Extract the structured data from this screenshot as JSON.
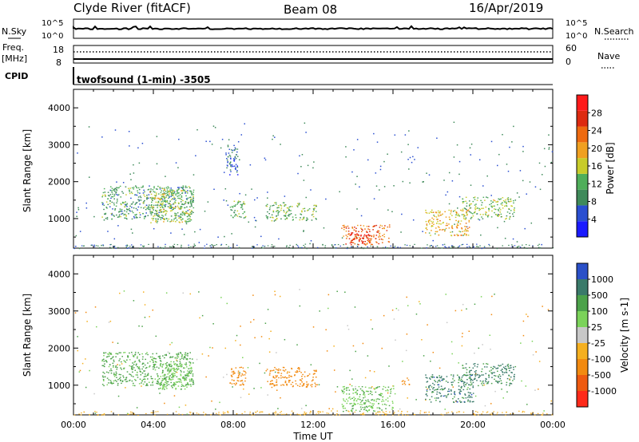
{
  "header": {
    "station": "Clyde River (fitACF)",
    "beam": "Beam 08",
    "date": "16/Apr/2019"
  },
  "top_panels": {
    "nsky_label": "N.Sky",
    "nsearch_label": "N.Search",
    "nsky_ticks": [
      "10^5",
      "10^0"
    ],
    "nsearch_ticks": [
      "10^5",
      "10^0"
    ],
    "freq_label": "Freq.",
    "freq_unit": "[MHz]",
    "freq_ticks": [
      "18",
      "8"
    ],
    "nave_label": "Nave",
    "nave_ticks": [
      "60",
      "0"
    ],
    "cpid_label": "CPID",
    "cpid_text": "twofsound (1-min) -3505"
  },
  "colors": {
    "power_scale": [
      "#1a1aff",
      "#2a4fd1",
      "#3f8a5a",
      "#4fae5a",
      "#c8cc2a",
      "#f0a020",
      "#ee6a10",
      "#dd2a10",
      "#ff1a1a"
    ],
    "velocity_scale": [
      "#ff2a1a",
      "#ee5a10",
      "#f28a10",
      "#f5b020",
      "#c8c8c8",
      "#7bd35a",
      "#4ca24a",
      "#3a7a6a",
      "#2a50c8"
    ]
  },
  "chart_data": [
    {
      "type": "heatmap",
      "title": "",
      "quantity": "Power",
      "colorbar_label": "Power [dB]",
      "colorbar_ticks": [
        "28",
        "24",
        "20",
        "16",
        "12",
        "8",
        "4"
      ],
      "clim": [
        0,
        30
      ],
      "xlabel": "",
      "ylabel": "Slant Range [km]",
      "xlim": [
        "00:00",
        "24:00"
      ],
      "ylim": [
        200,
        4500
      ],
      "y_ticks": [
        1000,
        2000,
        3000,
        4000
      ],
      "x_tick_labels": [
        "00:00",
        "04:00",
        "08:00",
        "12:00",
        "16:00",
        "20:00",
        "00:00"
      ],
      "x_ticks_hours": [
        0,
        4,
        8,
        12,
        16,
        20,
        24
      ],
      "regions": [
        {
          "t": [
            1.4,
            6.0
          ],
          "r": [
            1000,
            1900
          ],
          "v": 10
        },
        {
          "t": [
            3.8,
            5.9
          ],
          "r": [
            900,
            1800
          ],
          "v": 14
        },
        {
          "t": [
            7.8,
            8.6
          ],
          "r": [
            1000,
            1500
          ],
          "v": 11
        },
        {
          "t": [
            9.6,
            12.2
          ],
          "r": [
            950,
            1450
          ],
          "v": 12
        },
        {
          "t": [
            13.4,
            15.8
          ],
          "r": [
            300,
            850
          ],
          "v": 22
        },
        {
          "t": [
            13.8,
            14.8
          ],
          "r": [
            350,
            650
          ],
          "v": 27
        },
        {
          "t": [
            17.6,
            19.8
          ],
          "r": [
            550,
            1250
          ],
          "v": 17
        },
        {
          "t": [
            19.4,
            22.1
          ],
          "r": [
            1000,
            1600
          ],
          "v": 13
        },
        {
          "t": [
            7.6,
            8.2
          ],
          "r": [
            2200,
            3000
          ],
          "v": 6
        }
      ]
    },
    {
      "type": "heatmap",
      "title": "",
      "quantity": "Velocity",
      "colorbar_label": "Velocity [m s-1]",
      "colorbar_ticks": [
        "1000",
        "500",
        "100",
        "25",
        "-25",
        "-100",
        "-500",
        "-1000"
      ],
      "clim": [
        -1000,
        1000
      ],
      "xlabel": "Time UT",
      "ylabel": "Slant Range [km]",
      "xlim": [
        "00:00",
        "24:00"
      ],
      "ylim": [
        200,
        4500
      ],
      "y_ticks": [
        1000,
        2000,
        3000,
        4000
      ],
      "x_tick_labels": [
        "00:00",
        "04:00",
        "08:00",
        "12:00",
        "16:00",
        "20:00",
        "00:00"
      ],
      "x_ticks_hours": [
        0,
        4,
        8,
        12,
        16,
        20,
        24
      ],
      "regions": [
        {
          "t": [
            1.4,
            6.0
          ],
          "r": [
            1000,
            1900
          ],
          "v": 150
        },
        {
          "t": [
            4.2,
            5.9
          ],
          "r": [
            900,
            1600
          ],
          "v": 80
        },
        {
          "t": [
            7.8,
            8.6
          ],
          "r": [
            1000,
            1500
          ],
          "v": -300
        },
        {
          "t": [
            9.6,
            12.2
          ],
          "r": [
            950,
            1500
          ],
          "v": -250
        },
        {
          "t": [
            13.4,
            16.0
          ],
          "r": [
            300,
            1000
          ],
          "v": 90
        },
        {
          "t": [
            17.6,
            20.0
          ],
          "r": [
            550,
            1300
          ],
          "v": 700
        },
        {
          "t": [
            19.4,
            22.1
          ],
          "r": [
            1000,
            1600
          ],
          "v": 600
        },
        {
          "t": [
            16.4,
            16.8
          ],
          "r": [
            950,
            1250
          ],
          "v": -200
        }
      ]
    }
  ]
}
